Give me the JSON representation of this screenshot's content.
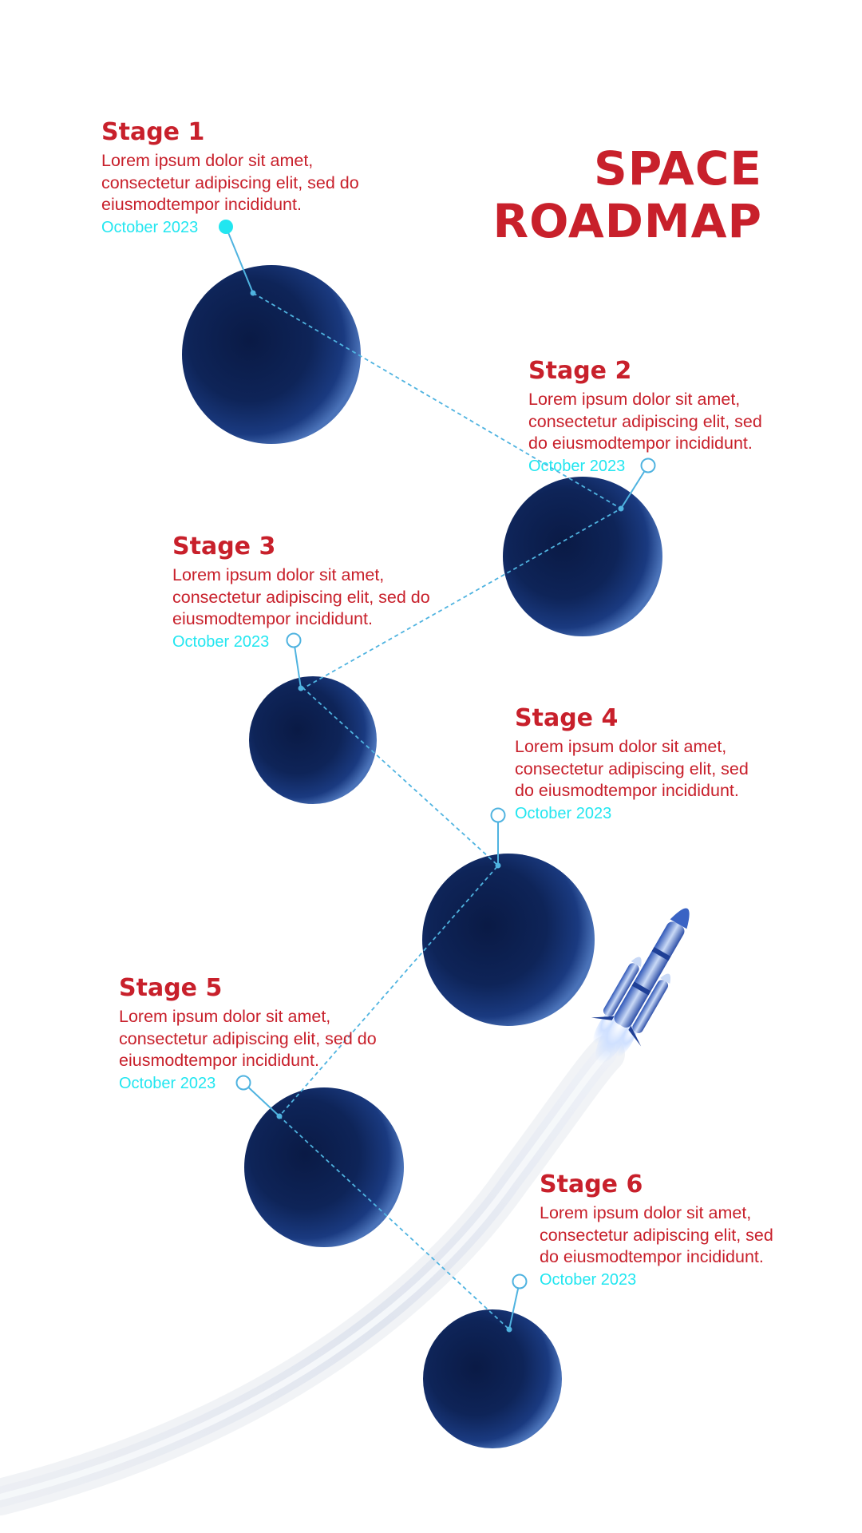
{
  "title": {
    "line1": "SPACE",
    "line2": "ROADMAP"
  },
  "colors": {
    "title": "#c8202b",
    "stage_text": "#c8202b",
    "date": "#22e6f0",
    "planet_dark": "#0a1a45",
    "planet_light": "#3e67b0",
    "connector": "#4fb3e0"
  },
  "stages": [
    {
      "name": "Stage 1",
      "description": "Lorem ipsum dolor sit amet, consectetur adipiscing elit, sed do eiusmodtempor incididunt.",
      "date": "October 2023"
    },
    {
      "name": "Stage 2",
      "description": "Lorem ipsum dolor sit amet, consectetur adipiscing elit, sed do eiusmodtempor incididunt.",
      "date": "October 2023"
    },
    {
      "name": "Stage 3",
      "description": "Lorem ipsum dolor sit amet, consectetur adipiscing elit, sed do eiusmodtempor incididunt.",
      "date": "October 2023"
    },
    {
      "name": "Stage 4",
      "description": "Lorem ipsum dolor sit amet, consectetur adipiscing elit, sed do eiusmodtempor incididunt.",
      "date": "October 2023"
    },
    {
      "name": "Stage 5",
      "description": "Lorem ipsum dolor sit amet, consectetur adipiscing elit, sed do eiusmodtempor incididunt.",
      "date": "October 2023"
    },
    {
      "name": "Stage 6",
      "description": "Lorem ipsum dolor sit amet, consectetur adipiscing elit, sed do eiusmodtempor incididunt.",
      "date": "October 2023"
    }
  ],
  "icons": {
    "rocket": "rocket-icon",
    "planet": "planet-icon"
  }
}
